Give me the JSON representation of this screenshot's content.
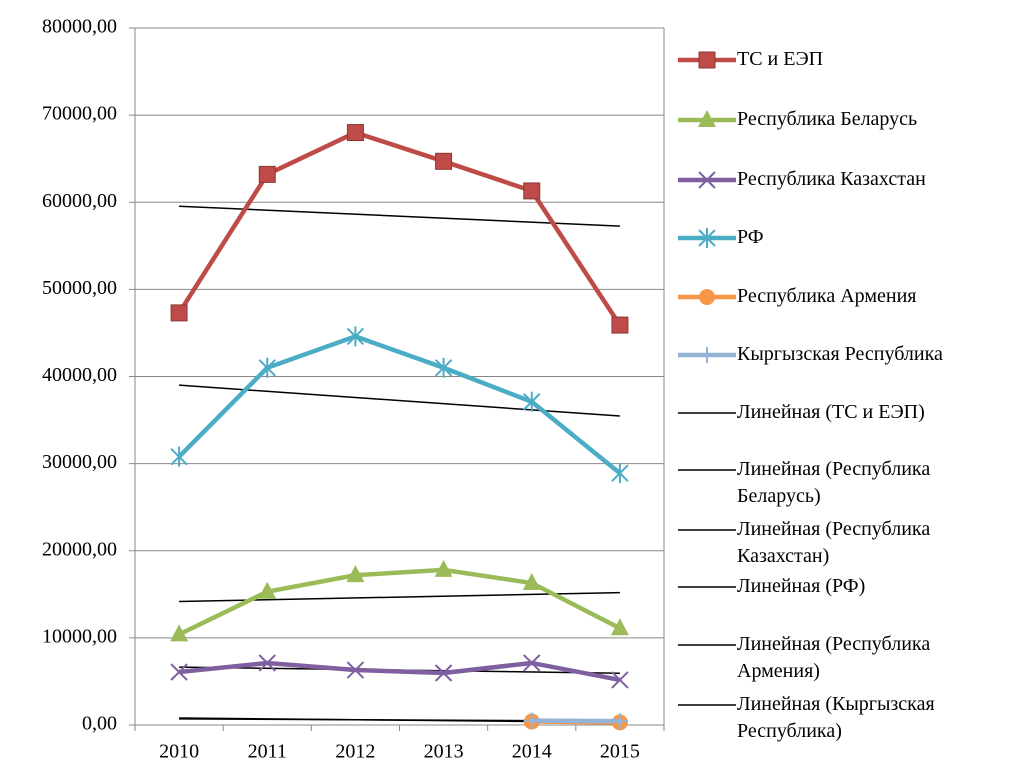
{
  "chart_data": {
    "type": "line",
    "categories": [
      "2010",
      "2011",
      "2012",
      "2013",
      "2014",
      "2015"
    ],
    "series": [
      {
        "name": "ТС и ЕЭП",
        "color": "#be4b48",
        "marker": "square",
        "values": [
          47300,
          63200,
          68000,
          64700,
          61300,
          45900
        ]
      },
      {
        "name": "Республика Беларусь",
        "color": "#9bbb59",
        "marker": "triangle",
        "values": [
          10400,
          15300,
          17200,
          17800,
          16300,
          11100
        ]
      },
      {
        "name": "Республика Казахстан",
        "color": "#7f5fa0",
        "marker": "x",
        "values": [
          6080,
          7120,
          6310,
          5970,
          7120,
          5170
        ]
      },
      {
        "name": "РФ",
        "color": "#4bacc6",
        "marker": "asterisk",
        "values": [
          30800,
          41000,
          44600,
          41000,
          37100,
          28900
        ]
      },
      {
        "name": "Республика Армения",
        "color": "#f79646",
        "marker": "circle",
        "values": [
          null,
          null,
          null,
          null,
          400,
          300
        ]
      },
      {
        "name": "Кыргызская Республика",
        "color": "#95b3d7",
        "marker": "plus",
        "values": [
          null,
          null,
          null,
          null,
          500,
          450
        ]
      }
    ],
    "trendline_labels": [
      "Линейная (ТС и ЕЭП)",
      "Линейная (Республика Беларусь)",
      "Линейная (Республика Казахстан)",
      "Линейная (РФ)",
      "Линейная (Республика Армения)",
      "Линейная (Кыргызская Республика)"
    ],
    "trendline_color": "#000000",
    "ylim": [
      0,
      80000
    ],
    "yticks": [
      {
        "value": 0,
        "label": "0,00"
      },
      {
        "value": 10000,
        "label": "10000,00"
      },
      {
        "value": 20000,
        "label": "20000,00"
      },
      {
        "value": 30000,
        "label": "30000,00"
      },
      {
        "value": 40000,
        "label": "40000,00"
      },
      {
        "value": 50000,
        "label": "50000,00"
      },
      {
        "value": 60000,
        "label": "60000,00"
      },
      {
        "value": 70000,
        "label": "70000,00"
      },
      {
        "value": 80000,
        "label": "80000,00"
      }
    ],
    "grid": true,
    "legend": "right"
  }
}
